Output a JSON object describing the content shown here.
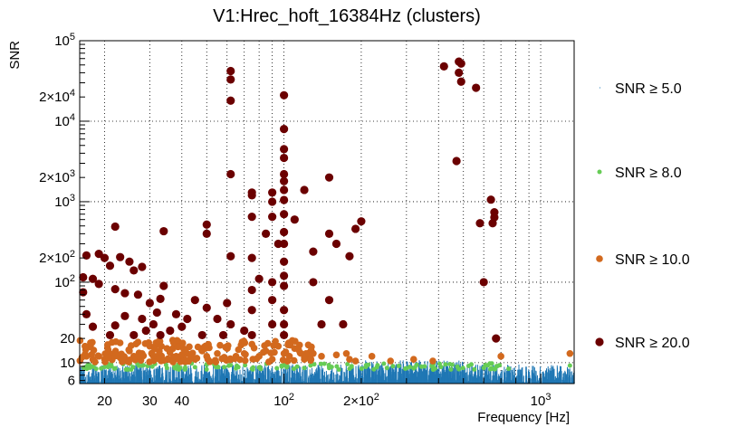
{
  "chart_data": {
    "type": "scatter",
    "title": "V1:Hrec_hoft_16384Hz (clusters)",
    "xlabel": "Frequency [Hz]",
    "ylabel": "SNR",
    "x_scale": "log",
    "y_scale": "log",
    "xlim": [
      16,
      1350
    ],
    "ylim": [
      5.5,
      100000
    ],
    "grid": true,
    "legend_placement": "right",
    "x_tick_labels": [
      {
        "value": 20,
        "label": "20"
      },
      {
        "value": 30,
        "label": "30"
      },
      {
        "value": 40,
        "label": "40"
      },
      {
        "value": 100,
        "label": "10",
        "sup": "2"
      },
      {
        "value": 200,
        "label": "2×10",
        "sup": "2"
      },
      {
        "value": 1000,
        "label": "10",
        "sup": "3"
      }
    ],
    "y_tick_labels": [
      {
        "value": 6,
        "label": "6"
      },
      {
        "value": 10,
        "label": "10"
      },
      {
        "value": 20,
        "label": "20"
      },
      {
        "value": 100,
        "label": "10",
        "sup": "2"
      },
      {
        "value": 200,
        "label": "2×10",
        "sup": "2"
      },
      {
        "value": 1000,
        "label": "10",
        "sup": "3"
      },
      {
        "value": 2000,
        "label": "2×10",
        "sup": "3"
      },
      {
        "value": 10000,
        "label": "10",
        "sup": "4"
      },
      {
        "value": 20000,
        "label": "2×10",
        "sup": "4"
      },
      {
        "value": 100000,
        "label": "10",
        "sup": "5"
      }
    ],
    "series": [
      {
        "name": "SNR ≥ 5.0",
        "color": "#1f77b4",
        "marker": "dot",
        "description_range": {
          "x": [
            16,
            1350
          ],
          "y": [
            5.5,
            8
          ]
        },
        "points": [
          [
            18,
            7.5
          ],
          [
            25,
            7.8
          ],
          [
            40,
            7.2
          ],
          [
            60,
            7.6
          ],
          [
            90,
            7.8
          ],
          [
            150,
            7.4
          ],
          [
            250,
            7.9
          ],
          [
            300,
            7.7
          ],
          [
            400,
            7.3
          ],
          [
            600,
            7.1
          ],
          [
            900,
            7.2
          ],
          [
            1200,
            7.0
          ]
        ]
      },
      {
        "name": "SNR ≥ 8.0",
        "color": "#66cc55",
        "marker": "small-circle",
        "points": [
          [
            17,
            9
          ],
          [
            22,
            8.5
          ],
          [
            28,
            9.2
          ],
          [
            35,
            8.6
          ],
          [
            45,
            8.8
          ],
          [
            55,
            9.0
          ],
          [
            65,
            8.5
          ],
          [
            80,
            8.7
          ],
          [
            100,
            9.3
          ],
          [
            120,
            8.6
          ],
          [
            150,
            8.9
          ],
          [
            180,
            8.4
          ],
          [
            230,
            8.8
          ],
          [
            280,
            9.1
          ],
          [
            320,
            8.5
          ],
          [
            380,
            8.9
          ],
          [
            480,
            8.3
          ],
          [
            600,
            8.6
          ],
          [
            750,
            8.4
          ],
          [
            1300,
            9.2
          ]
        ]
      },
      {
        "name": "SNR ≥ 10.0",
        "color": "#d2691e",
        "marker": "circle",
        "points": [
          [
            17,
            12
          ],
          [
            18,
            11
          ],
          [
            19,
            12
          ],
          [
            20,
            11
          ],
          [
            21,
            13
          ],
          [
            23,
            11.5
          ],
          [
            25,
            14
          ],
          [
            26,
            12
          ],
          [
            27,
            18
          ],
          [
            28,
            13
          ],
          [
            30,
            16
          ],
          [
            32,
            12
          ],
          [
            33,
            11
          ],
          [
            35,
            15
          ],
          [
            36,
            14
          ],
          [
            38,
            12
          ],
          [
            42,
            13
          ],
          [
            45,
            11
          ],
          [
            48,
            14
          ],
          [
            50,
            12
          ],
          [
            55,
            13
          ],
          [
            60,
            15
          ],
          [
            65,
            12
          ],
          [
            70,
            13
          ],
          [
            75,
            17
          ],
          [
            80,
            12
          ],
          [
            85,
            14
          ],
          [
            90,
            11
          ],
          [
            95,
            16
          ],
          [
            100,
            13
          ],
          [
            105,
            12
          ],
          [
            110,
            15
          ],
          [
            120,
            11
          ],
          [
            130,
            13
          ],
          [
            140,
            12
          ],
          [
            160,
            12.5
          ],
          [
            175,
            13
          ],
          [
            180,
            11
          ],
          [
            190,
            10.5
          ],
          [
            220,
            12
          ],
          [
            260,
            10.5
          ],
          [
            320,
            11
          ],
          [
            380,
            10.5
          ],
          [
            700,
            12
          ],
          [
            1300,
            13
          ]
        ]
      },
      {
        "name": "SNR ≥ 20.0",
        "color": "#6b0000",
        "marker": "large-circle",
        "points": [
          [
            16.5,
            115
          ],
          [
            16.5,
            75
          ],
          [
            17,
            40
          ],
          [
            17,
            215
          ],
          [
            18,
            28
          ],
          [
            18,
            110
          ],
          [
            19,
            225
          ],
          [
            19,
            95
          ],
          [
            20,
            200
          ],
          [
            21,
            22
          ],
          [
            21,
            160
          ],
          [
            22,
            29
          ],
          [
            22,
            490
          ],
          [
            22,
            82
          ],
          [
            23,
            205
          ],
          [
            24,
            38
          ],
          [
            24,
            73
          ],
          [
            25,
            180
          ],
          [
            26,
            22
          ],
          [
            26,
            140
          ],
          [
            27,
            70
          ],
          [
            28,
            35
          ],
          [
            28,
            155
          ],
          [
            29,
            25
          ],
          [
            30,
            55
          ],
          [
            31,
            30
          ],
          [
            32,
            42
          ],
          [
            33,
            22
          ],
          [
            33,
            62
          ],
          [
            34,
            430
          ],
          [
            34,
            90
          ],
          [
            36,
            25
          ],
          [
            38,
            40
          ],
          [
            40,
            28
          ],
          [
            42,
            35
          ],
          [
            45,
            60
          ],
          [
            48,
            22
          ],
          [
            50,
            520
          ],
          [
            50,
            400
          ],
          [
            50,
            48
          ],
          [
            55,
            35
          ],
          [
            58,
            22
          ],
          [
            60,
            55
          ],
          [
            62,
            42000
          ],
          [
            62,
            33000
          ],
          [
            62,
            18000
          ],
          [
            62,
            2200
          ],
          [
            62,
            210
          ],
          [
            62,
            30
          ],
          [
            70,
            25
          ],
          [
            75,
            1300
          ],
          [
            75,
            1200
          ],
          [
            75,
            650
          ],
          [
            75,
            200
          ],
          [
            75,
            80
          ],
          [
            75,
            45
          ],
          [
            75,
            22
          ],
          [
            80,
            110
          ],
          [
            85,
            400
          ],
          [
            90,
            1300
          ],
          [
            90,
            1000
          ],
          [
            90,
            650
          ],
          [
            90,
            100
          ],
          [
            90,
            60
          ],
          [
            90,
            30
          ],
          [
            95,
            300
          ],
          [
            100,
            8000
          ],
          [
            100,
            4500
          ],
          [
            100,
            3500
          ],
          [
            100,
            2200
          ],
          [
            100,
            1800
          ],
          [
            100,
            1400
          ],
          [
            100,
            1050
          ],
          [
            100,
            700
          ],
          [
            100,
            420
          ],
          [
            100,
            300
          ],
          [
            100,
            180
          ],
          [
            100,
            120
          ],
          [
            100,
            90
          ],
          [
            100,
            45
          ],
          [
            100,
            30
          ],
          [
            100,
            22
          ],
          [
            100,
            21000
          ],
          [
            110,
            600
          ],
          [
            120,
            1400
          ],
          [
            130,
            240
          ],
          [
            130,
            100
          ],
          [
            140,
            30
          ],
          [
            150,
            2000
          ],
          [
            150,
            400
          ],
          [
            150,
            60
          ],
          [
            160,
            300
          ],
          [
            170,
            30
          ],
          [
            180,
            210
          ],
          [
            190,
            460
          ],
          [
            200,
            570
          ],
          [
            420,
            48000
          ],
          [
            470,
            3200
          ],
          [
            480,
            55000
          ],
          [
            480,
            40000
          ],
          [
            490,
            52000
          ],
          [
            490,
            31000
          ],
          [
            560,
            26000
          ],
          [
            580,
            540
          ],
          [
            600,
            100
          ],
          [
            640,
            1060
          ],
          [
            650,
            540
          ],
          [
            660,
            640
          ],
          [
            660,
            740
          ],
          [
            670,
            20
          ]
        ]
      }
    ]
  }
}
